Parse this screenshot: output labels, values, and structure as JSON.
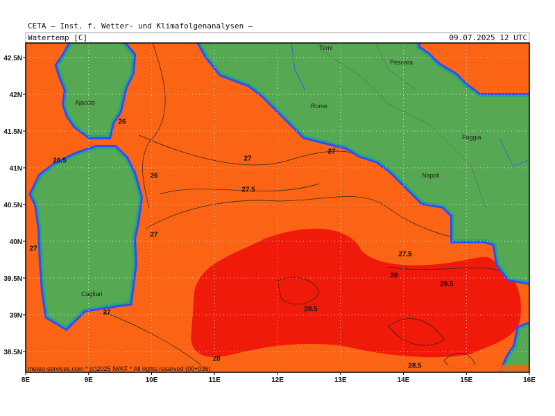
{
  "header": {
    "title": "CETA — Inst. f. Wetter- und Klimafolgenanalysen —",
    "variable": "Watertemp [C]",
    "valid": "09.07.2025 12 UTC",
    "credit": "meteo-services.com * (c)2025 IWKF * All rights reserved (00+036)"
  },
  "axes": {
    "longitude": [
      "8E",
      "9E",
      "10E",
      "11E",
      "12E",
      "13E",
      "14E",
      "15E",
      "16E"
    ],
    "latitude": [
      "42.5N",
      "42N",
      "41.5N",
      "41N",
      "40.5N",
      "40N",
      "39.5N",
      "39N",
      "38.5N"
    ]
  },
  "places": [
    "Terni",
    "Pescara",
    "Ajaccio",
    "Rome",
    "Foggia",
    "Napoli",
    "Cagliari"
  ],
  "contour_labels": [
    26,
    26.5,
    26,
    27,
    27.5,
    27,
    27,
    27,
    27.5,
    28,
    28.5,
    28.5,
    27,
    28,
    28.5
  ]
}
